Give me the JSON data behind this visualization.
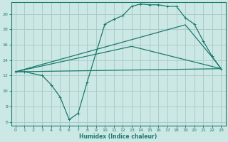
{
  "background_color": "#cce8e4",
  "grid_color": "#aaccca",
  "line_color": "#1a7a6e",
  "xlabel": "Humidex (Indice chaleur)",
  "ylim": [
    5.5,
    21.5
  ],
  "xlim": [
    -0.5,
    23.5
  ],
  "yticks": [
    6,
    8,
    10,
    12,
    14,
    16,
    18,
    20
  ],
  "xticks": [
    0,
    1,
    2,
    3,
    4,
    5,
    6,
    7,
    8,
    9,
    10,
    11,
    12,
    13,
    14,
    15,
    16,
    17,
    18,
    19,
    20,
    21,
    22,
    23
  ],
  "series1_x": [
    0,
    1,
    3,
    4,
    5,
    6,
    7,
    8,
    10,
    11,
    12,
    13,
    14,
    15,
    16,
    17,
    18,
    19,
    20,
    21,
    22,
    23
  ],
  "series1_y": [
    12.5,
    12.5,
    12.0,
    10.8,
    9.2,
    6.3,
    7.1,
    11.1,
    18.7,
    19.3,
    19.8,
    21.0,
    21.3,
    21.2,
    21.2,
    21.0,
    21.0,
    19.5,
    18.7,
    16.5,
    14.5,
    12.9
  ],
  "series2_x": [
    0,
    23
  ],
  "series2_y": [
    12.5,
    12.9
  ],
  "series3_x": [
    0,
    19,
    22,
    23
  ],
  "series3_y": [
    12.5,
    18.6,
    14.4,
    12.9
  ],
  "series4_x": [
    0,
    13,
    23
  ],
  "series4_y": [
    12.5,
    15.8,
    12.9
  ]
}
